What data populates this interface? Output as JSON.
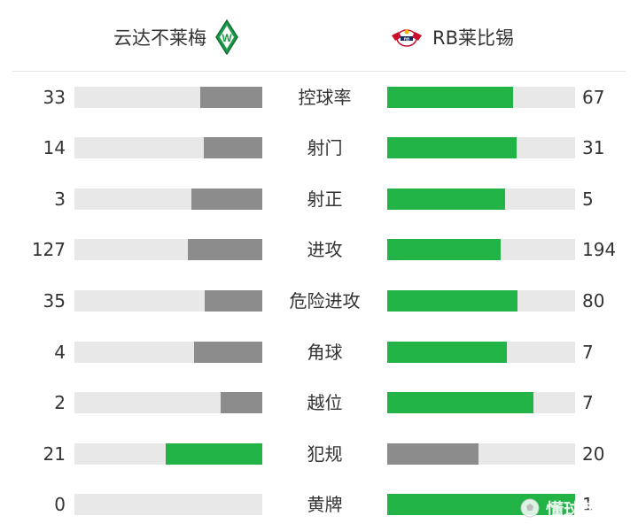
{
  "home": {
    "name": "云达不莱梅",
    "crest_icon": "werder-bremen-crest-icon"
  },
  "away": {
    "name": "RB莱比锡",
    "crest_icon": "rb-leipzig-crest-icon"
  },
  "colors": {
    "home_bar": "#8c8c8c",
    "away_bar": "#22b347",
    "track": "#e8e8e8"
  },
  "stats": [
    {
      "label": "控球率",
      "home": 33,
      "away": 67,
      "home_color": "#8c8c8c",
      "away_color": "#22b347"
    },
    {
      "label": "射门",
      "home": 14,
      "away": 31,
      "home_color": "#8c8c8c",
      "away_color": "#22b347"
    },
    {
      "label": "射正",
      "home": 3,
      "away": 5,
      "home_color": "#8c8c8c",
      "away_color": "#22b347"
    },
    {
      "label": "进攻",
      "home": 127,
      "away": 194,
      "home_color": "#8c8c8c",
      "away_color": "#22b347"
    },
    {
      "label": "危险进攻",
      "home": 35,
      "away": 80,
      "home_color": "#8c8c8c",
      "away_color": "#22b347"
    },
    {
      "label": "角球",
      "home": 4,
      "away": 7,
      "home_color": "#8c8c8c",
      "away_color": "#22b347"
    },
    {
      "label": "越位",
      "home": 2,
      "away": 7,
      "home_color": "#8c8c8c",
      "away_color": "#22b347"
    },
    {
      "label": "犯规",
      "home": 21,
      "away": 20,
      "home_color": "#22b347",
      "away_color": "#8c8c8c"
    },
    {
      "label": "黄牌",
      "home": 0,
      "away": 1,
      "home_color": "#8c8c8c",
      "away_color": "#22b347"
    }
  ],
  "watermark": {
    "text": "懂球帝",
    "icon": "football-icon"
  }
}
